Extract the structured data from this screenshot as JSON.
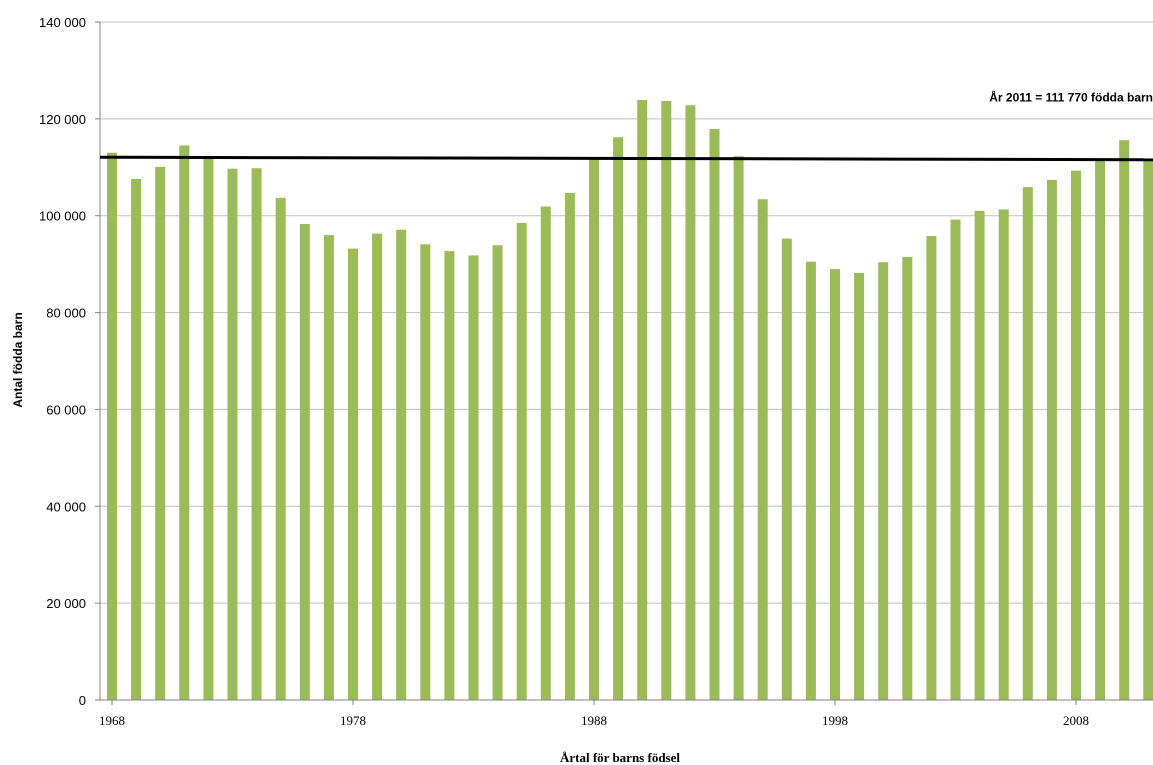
{
  "chart_data": {
    "type": "bar",
    "xlabel": "Årtal för barns födsel",
    "ylabel": "Antal födda barn",
    "ylim": [
      0,
      140000
    ],
    "yticks": [
      0,
      20000,
      40000,
      60000,
      80000,
      100000,
      120000,
      140000
    ],
    "ytick_labels": [
      "0",
      "20 000",
      "40 000",
      "60 000",
      "80 000",
      "100 000",
      "120 000",
      "140 000"
    ],
    "xtick_labels": [
      "1968",
      "1978",
      "1988",
      "1998",
      "2008"
    ],
    "grid": true,
    "bar_color": "#9bbb59",
    "series": [
      {
        "x": [
          1968,
          1969,
          1970,
          1971,
          1972,
          1973,
          1974,
          1975,
          1976,
          1977,
          1978,
          1979,
          1980,
          1981,
          1982,
          1983,
          1984,
          1985,
          1986,
          1987,
          1988,
          1989,
          1990,
          1991,
          1992,
          1993,
          1994,
          1995,
          1996,
          1997,
          1998,
          1999,
          2000,
          2001,
          2002,
          2003,
          2004,
          2005,
          2006,
          2007,
          2008,
          2009,
          2010,
          2011
        ],
        "values": [
          113000,
          107600,
          110100,
          114500,
          112300,
          109700,
          109800,
          103700,
          98300,
          96000,
          93200,
          96300,
          97100,
          94100,
          92700,
          91800,
          93900,
          98500,
          101900,
          104700,
          112100,
          116200,
          123900,
          123700,
          122800,
          117900,
          112300,
          103400,
          95300,
          90500,
          89000,
          88200,
          90400,
          91500,
          95800,
          99200,
          101000,
          101300,
          105900,
          107400,
          109300,
          111800,
          115600,
          111770
        ]
      }
    ],
    "reference_line": {
      "value": 111770,
      "color": "#000000",
      "label": "År 2011 = 111 770 födda barn"
    }
  }
}
